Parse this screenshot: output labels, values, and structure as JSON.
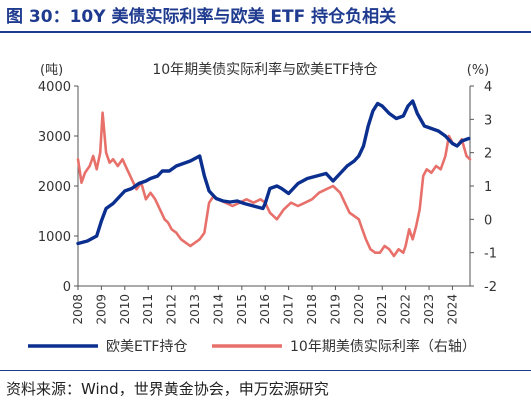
{
  "figure": {
    "title": "图 30：10Y 美债实际利率与欧美 ETF 持仓负相关",
    "source": "资料来源：Wind，世界黄金协会，申万宏源研究",
    "colors": {
      "title": "#1f3b8f",
      "etf": "#0b2f8f",
      "rate": "#e8706b"
    }
  },
  "chart_data": {
    "type": "line",
    "title": "10年期美债实际利率与欧美ETF持仓",
    "left_unit": "(吨)",
    "right_unit": "(%)",
    "x_ticks": [
      "2008",
      "2009",
      "2010",
      "2011",
      "2012",
      "2013",
      "2014",
      "2015",
      "2016",
      "2017",
      "2018",
      "2019",
      "2020",
      "2021",
      "2022",
      "2023",
      "2024"
    ],
    "xlim": [
      2008.0,
      2024.75
    ],
    "y_left": {
      "lim": [
        0,
        4000
      ],
      "ticks": [
        "0",
        "1000",
        "2000",
        "3000",
        "4000"
      ]
    },
    "y_right": {
      "lim": [
        -2,
        4
      ],
      "ticks": [
        "-2",
        "-1",
        "0",
        "1",
        "2",
        "3",
        "4"
      ]
    },
    "grid": false,
    "legend_position": "bottom",
    "series": [
      {
        "name": "欧美ETF持仓",
        "axis": "left",
        "color": "#0b2f8f",
        "x": [
          2008.0,
          2008.4,
          2008.8,
          2009.0,
          2009.2,
          2009.5,
          2009.8,
          2010.0,
          2010.3,
          2010.6,
          2010.9,
          2011.1,
          2011.4,
          2011.6,
          2011.9,
          2012.2,
          2012.5,
          2012.8,
          2013.0,
          2013.2,
          2013.4,
          2013.6,
          2013.9,
          2014.2,
          2014.5,
          2014.8,
          2015.1,
          2015.5,
          2015.9,
          2016.0,
          2016.2,
          2016.5,
          2016.7,
          2017.0,
          2017.4,
          2017.8,
          2018.2,
          2018.6,
          2018.9,
          2019.2,
          2019.5,
          2019.8,
          2020.0,
          2020.2,
          2020.4,
          2020.6,
          2020.8,
          2021.0,
          2021.3,
          2021.6,
          2021.9,
          2022.1,
          2022.3,
          2022.5,
          2022.8,
          2023.1,
          2023.4,
          2023.7,
          2024.0,
          2024.2,
          2024.4,
          2024.7
        ],
        "y": [
          850,
          900,
          1000,
          1300,
          1550,
          1650,
          1800,
          1900,
          1950,
          2050,
          2100,
          2150,
          2200,
          2300,
          2300,
          2400,
          2450,
          2500,
          2550,
          2600,
          2200,
          1900,
          1750,
          1700,
          1680,
          1700,
          1650,
          1600,
          1550,
          1650,
          1950,
          2000,
          1950,
          1850,
          2050,
          2150,
          2200,
          2250,
          2100,
          2250,
          2400,
          2500,
          2600,
          2800,
          3200,
          3500,
          3650,
          3600,
          3450,
          3350,
          3400,
          3600,
          3700,
          3450,
          3200,
          3150,
          3100,
          3000,
          2850,
          2800,
          2900,
          2950
        ]
      },
      {
        "name": "10年期美债实际利率（右轴）",
        "axis": "right",
        "color": "#e8706b",
        "x": [
          2008.0,
          2008.15,
          2008.3,
          2008.5,
          2008.65,
          2008.8,
          2008.95,
          2009.05,
          2009.2,
          2009.35,
          2009.5,
          2009.7,
          2009.9,
          2010.1,
          2010.3,
          2010.5,
          2010.7,
          2010.9,
          2011.1,
          2011.3,
          2011.5,
          2011.7,
          2011.85,
          2012.0,
          2012.2,
          2012.4,
          2012.6,
          2012.8,
          2013.0,
          2013.2,
          2013.4,
          2013.6,
          2013.8,
          2014.0,
          2014.3,
          2014.6,
          2014.9,
          2015.2,
          2015.5,
          2015.8,
          2016.0,
          2016.2,
          2016.5,
          2016.8,
          2017.1,
          2017.4,
          2017.7,
          2018.0,
          2018.3,
          2018.6,
          2018.9,
          2019.2,
          2019.4,
          2019.6,
          2019.8,
          2020.0,
          2020.15,
          2020.3,
          2020.5,
          2020.7,
          2020.9,
          2021.1,
          2021.3,
          2021.5,
          2021.7,
          2021.9,
          2022.0,
          2022.15,
          2022.3,
          2022.45,
          2022.6,
          2022.75,
          2022.9,
          2023.1,
          2023.3,
          2023.5,
          2023.7,
          2023.85,
          2024.0,
          2024.2,
          2024.4,
          2024.6,
          2024.75
        ],
        "y": [
          1.8,
          1.1,
          1.4,
          1.6,
          1.9,
          1.5,
          2.0,
          3.2,
          2.0,
          1.7,
          1.8,
          1.6,
          1.8,
          1.5,
          1.2,
          0.9,
          1.1,
          0.6,
          0.8,
          0.6,
          0.3,
          0.0,
          -0.1,
          -0.3,
          -0.4,
          -0.6,
          -0.7,
          -0.8,
          -0.7,
          -0.6,
          -0.4,
          0.5,
          0.7,
          0.6,
          0.5,
          0.4,
          0.5,
          0.6,
          0.5,
          0.6,
          0.5,
          0.2,
          0.0,
          0.3,
          0.5,
          0.4,
          0.5,
          0.6,
          0.8,
          0.9,
          1.0,
          0.8,
          0.5,
          0.2,
          0.1,
          0.0,
          -0.3,
          -0.6,
          -0.9,
          -1.0,
          -1.0,
          -0.8,
          -0.9,
          -1.1,
          -0.9,
          -1.0,
          -0.8,
          -0.3,
          -0.6,
          -0.2,
          0.3,
          1.3,
          1.5,
          1.4,
          1.6,
          1.5,
          1.9,
          2.5,
          2.3,
          2.2,
          2.4,
          1.9,
          1.8
        ]
      }
    ]
  }
}
